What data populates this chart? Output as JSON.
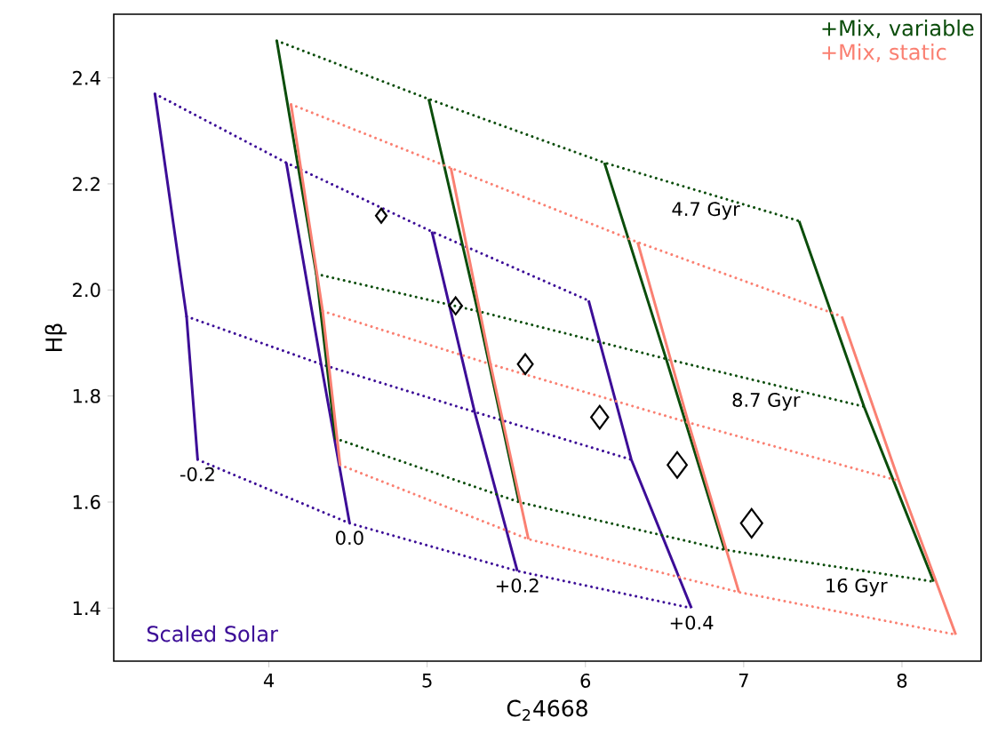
{
  "chart_data": {
    "type": "line",
    "xlabel": "C$_{2}$4668",
    "ylabel": "Hβ",
    "xlim": [
      3.02,
      8.5
    ],
    "ylim": [
      1.3,
      2.52
    ],
    "xticks": [
      4,
      5,
      6,
      7,
      8
    ],
    "yticks": [
      1.4,
      1.6,
      1.8,
      {
        "value": 2.0,
        "label": "2.0"
      },
      2.2,
      2.4
    ],
    "legend": "top right",
    "grid": false,
    "series": [
      {
        "name": "Scaled Solar",
        "line_style": "solid",
        "color": "#3c0d97",
        "x": [
          3.28,
          3.48,
          3.55
        ],
        "values": [
          2.37,
          1.95,
          1.68
        ]
      },
      {
        "line_style": "solid",
        "color": "#3c0d97",
        "x": [
          4.11,
          4.33,
          4.51
        ],
        "values": [
          2.24,
          1.86,
          1.56
        ]
      },
      {
        "line_style": "solid",
        "color": "#3c0d97",
        "x": [
          5.03,
          5.3,
          5.57
        ],
        "values": [
          2.11,
          1.77,
          1.47
        ]
      },
      {
        "line_style": "solid",
        "color": "#3c0d97",
        "x": [
          6.02,
          6.29,
          6.67
        ],
        "values": [
          1.98,
          1.68,
          1.4
        ]
      },
      {
        "line_style": "dotted",
        "color": "#3c0d97",
        "x": [
          3.28,
          4.11,
          5.03,
          6.02
        ],
        "values": [
          2.37,
          2.24,
          2.11,
          1.98
        ]
      },
      {
        "line_style": "dotted",
        "color": "#3c0d97",
        "x": [
          3.48,
          4.33,
          5.3,
          6.29
        ],
        "values": [
          1.95,
          1.86,
          1.77,
          1.68
        ]
      },
      {
        "line_style": "dotted",
        "color": "#3c0d97",
        "x": [
          3.55,
          4.51,
          5.57,
          6.67
        ],
        "values": [
          1.68,
          1.56,
          1.47,
          1.4
        ]
      },
      {
        "name": "+Mix, variable",
        "line_style": "solid",
        "color": "#0b4d0b",
        "x": [
          4.05,
          4.3,
          4.42
        ],
        "values": [
          2.47,
          2.03,
          1.72
        ]
      },
      {
        "line_style": "solid",
        "color": "#0b4d0b",
        "x": [
          5.01,
          5.32,
          5.58
        ],
        "values": [
          2.36,
          1.96,
          1.6
        ]
      },
      {
        "line_style": "solid",
        "color": "#0b4d0b",
        "x": [
          6.12,
          6.51,
          6.88
        ],
        "values": [
          2.24,
          1.87,
          1.51
        ]
      },
      {
        "line_style": "solid",
        "color": "#0b4d0b",
        "x": [
          7.35,
          7.76,
          8.2
        ],
        "values": [
          2.13,
          1.78,
          1.45
        ]
      },
      {
        "line_style": "dotted",
        "color": "#0b4d0b",
        "x": [
          4.05,
          5.01,
          6.12,
          7.35
        ],
        "values": [
          2.47,
          2.36,
          2.24,
          2.13
        ]
      },
      {
        "line_style": "dotted",
        "color": "#0b4d0b",
        "x": [
          4.3,
          5.32,
          6.51,
          7.76
        ],
        "values": [
          2.03,
          1.96,
          1.87,
          1.78
        ]
      },
      {
        "line_style": "dotted",
        "color": "#0b4d0b",
        "x": [
          4.42,
          5.58,
          6.88,
          8.2
        ],
        "values": [
          1.72,
          1.6,
          1.51,
          1.45
        ]
      },
      {
        "name": "+Mix, static",
        "line_style": "solid",
        "color": "#fa8072",
        "x": [
          4.14,
          4.34,
          4.45
        ],
        "values": [
          2.35,
          1.96,
          1.67
        ]
      },
      {
        "line_style": "solid",
        "color": "#fa8072",
        "x": [
          5.15,
          5.4,
          5.64
        ],
        "values": [
          2.23,
          1.86,
          1.53
        ]
      },
      {
        "line_style": "solid",
        "color": "#fa8072",
        "x": [
          6.33,
          6.65,
          6.97
        ],
        "values": [
          2.09,
          1.75,
          1.43
        ]
      },
      {
        "line_style": "solid",
        "color": "#fa8072",
        "x": [
          7.62,
          7.98,
          8.34
        ],
        "values": [
          1.95,
          1.64,
          1.35
        ]
      },
      {
        "line_style": "dotted",
        "color": "#fa8072",
        "x": [
          4.14,
          5.15,
          6.33,
          7.62
        ],
        "values": [
          2.35,
          2.23,
          2.09,
          1.95
        ]
      },
      {
        "line_style": "dotted",
        "color": "#fa8072",
        "x": [
          4.34,
          5.4,
          6.65,
          7.98
        ],
        "values": [
          1.96,
          1.86,
          1.75,
          1.64
        ]
      },
      {
        "line_style": "dotted",
        "color": "#fa8072",
        "x": [
          4.45,
          5.64,
          6.97,
          8.34
        ],
        "values": [
          1.67,
          1.53,
          1.43,
          1.35
        ]
      },
      {
        "type": "bubble",
        "marker": "diamond",
        "color": "#000000",
        "x": [
          4.71,
          5.18,
          5.62,
          6.09,
          6.58,
          7.05
        ],
        "values": [
          2.14,
          1.97,
          1.86,
          1.76,
          1.67,
          1.56
        ],
        "sizes": [
          0.25,
          0.36,
          0.49,
          0.64,
          0.81,
          1
        ]
      }
    ],
    "annotations": [
      {
        "text": "4.7 Gyr",
        "x": 6.76,
        "y": 2.18
      },
      {
        "text": "8.7 Gyr",
        "x": 7.14,
        "y": 1.82
      },
      {
        "text": "16 Gyr",
        "x": 7.71,
        "y": 1.47
      },
      {
        "text": "-0.2",
        "x": 3.55,
        "y": 1.68
      },
      {
        "text": "0.0",
        "x": 4.51,
        "y": 1.56
      },
      {
        "text": "+0.2",
        "x": 5.57,
        "y": 1.47
      },
      {
        "text": "+0.4",
        "x": 6.67,
        "y": 1.4
      }
    ]
  }
}
